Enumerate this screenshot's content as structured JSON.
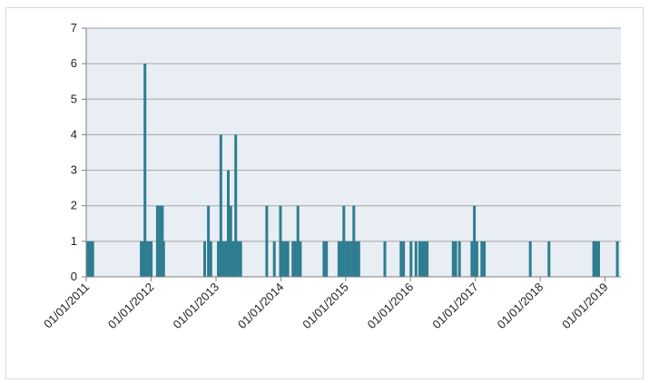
{
  "chart_data": {
    "type": "bar",
    "title": "",
    "xlabel": "",
    "ylabel": "",
    "ylim": [
      0,
      7
    ],
    "y_ticks": [
      "0",
      "1",
      "2",
      "3",
      "4",
      "5",
      "6",
      "7"
    ],
    "x_range": [
      "2011-01-01",
      "2019-03-31"
    ],
    "x_tick_labels": [
      "01/01/2011",
      "01/01/2012",
      "01/01/2013",
      "01/01/2014",
      "01/01/2015",
      "01/01/2016",
      "01/01/2017",
      "01/01/2018",
      "01/01/2019"
    ],
    "x_tick_dates": [
      "2011-01-01",
      "2012-01-01",
      "2013-01-01",
      "2014-01-01",
      "2015-01-01",
      "2016-01-01",
      "2017-01-01",
      "2018-01-01",
      "2019-01-01"
    ],
    "grid": true,
    "bar_color": "#2e7d91",
    "plot_background": "#e8eef4",
    "gridline_color": "#a6a6a6",
    "points": [
      {
        "date": "2011-01-07",
        "value": 1
      },
      {
        "date": "2011-01-14",
        "value": 1
      },
      {
        "date": "2011-01-28",
        "value": 1
      },
      {
        "date": "2011-02-07",
        "value": 1
      },
      {
        "date": "2011-11-07",
        "value": 1
      },
      {
        "date": "2011-11-21",
        "value": 1
      },
      {
        "date": "2011-11-28",
        "value": 6
      },
      {
        "date": "2011-12-05",
        "value": 1
      },
      {
        "date": "2011-12-19",
        "value": 1
      },
      {
        "date": "2012-01-02",
        "value": 1
      },
      {
        "date": "2012-02-06",
        "value": 2
      },
      {
        "date": "2012-02-13",
        "value": 1
      },
      {
        "date": "2012-02-20",
        "value": 2
      },
      {
        "date": "2012-02-27",
        "value": 1
      },
      {
        "date": "2012-03-05",
        "value": 2
      },
      {
        "date": "2012-03-12",
        "value": 1
      },
      {
        "date": "2012-10-29",
        "value": 1
      },
      {
        "date": "2012-11-19",
        "value": 2
      },
      {
        "date": "2012-12-03",
        "value": 1
      },
      {
        "date": "2013-01-14",
        "value": 1
      },
      {
        "date": "2013-01-28",
        "value": 4
      },
      {
        "date": "2013-02-11",
        "value": 1
      },
      {
        "date": "2013-02-25",
        "value": 1
      },
      {
        "date": "2013-03-11",
        "value": 3
      },
      {
        "date": "2013-03-25",
        "value": 2
      },
      {
        "date": "2013-04-08",
        "value": 1
      },
      {
        "date": "2013-04-22",
        "value": 4
      },
      {
        "date": "2013-05-06",
        "value": 1
      },
      {
        "date": "2013-05-20",
        "value": 1
      },
      {
        "date": "2013-10-14",
        "value": 2
      },
      {
        "date": "2013-11-25",
        "value": 1
      },
      {
        "date": "2013-12-30",
        "value": 2
      },
      {
        "date": "2014-01-13",
        "value": 1
      },
      {
        "date": "2014-01-27",
        "value": 1
      },
      {
        "date": "2014-02-10",
        "value": 1
      },
      {
        "date": "2014-03-10",
        "value": 1
      },
      {
        "date": "2014-03-24",
        "value": 1
      },
      {
        "date": "2014-04-07",
        "value": 2
      },
      {
        "date": "2014-04-21",
        "value": 1
      },
      {
        "date": "2014-09-01",
        "value": 1
      },
      {
        "date": "2014-09-15",
        "value": 1
      },
      {
        "date": "2014-11-24",
        "value": 1
      },
      {
        "date": "2014-12-08",
        "value": 1
      },
      {
        "date": "2014-12-22",
        "value": 2
      },
      {
        "date": "2015-01-05",
        "value": 1
      },
      {
        "date": "2015-01-19",
        "value": 1
      },
      {
        "date": "2015-02-02",
        "value": 1
      },
      {
        "date": "2015-02-16",
        "value": 2
      },
      {
        "date": "2015-03-02",
        "value": 1
      },
      {
        "date": "2015-03-16",
        "value": 1
      },
      {
        "date": "2015-08-10",
        "value": 1
      },
      {
        "date": "2015-11-09",
        "value": 1
      },
      {
        "date": "2015-11-23",
        "value": 1
      },
      {
        "date": "2016-01-04",
        "value": 1
      },
      {
        "date": "2016-02-01",
        "value": 1
      },
      {
        "date": "2016-02-22",
        "value": 1
      },
      {
        "date": "2016-03-07",
        "value": 1
      },
      {
        "date": "2016-03-21",
        "value": 1
      },
      {
        "date": "2016-04-04",
        "value": 1
      },
      {
        "date": "2016-08-29",
        "value": 1
      },
      {
        "date": "2016-09-12",
        "value": 1
      },
      {
        "date": "2016-10-03",
        "value": 1
      },
      {
        "date": "2016-12-12",
        "value": 1
      },
      {
        "date": "2016-12-26",
        "value": 2
      },
      {
        "date": "2017-01-09",
        "value": 1
      },
      {
        "date": "2017-02-06",
        "value": 1
      },
      {
        "date": "2017-02-20",
        "value": 1
      },
      {
        "date": "2017-11-06",
        "value": 1
      },
      {
        "date": "2018-02-19",
        "value": 1
      },
      {
        "date": "2018-10-29",
        "value": 1
      },
      {
        "date": "2018-11-05",
        "value": 1
      },
      {
        "date": "2018-11-12",
        "value": 1
      },
      {
        "date": "2018-11-19",
        "value": 1
      },
      {
        "date": "2018-11-26",
        "value": 1
      },
      {
        "date": "2019-03-11",
        "value": 1
      }
    ]
  }
}
